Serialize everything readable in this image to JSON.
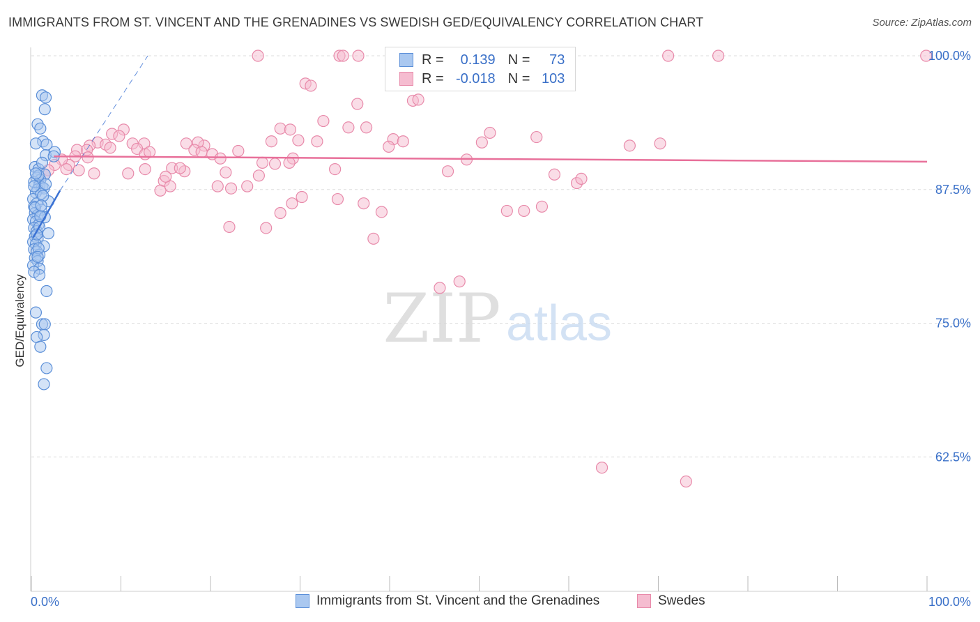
{
  "title": "IMMIGRANTS FROM ST. VINCENT AND THE GRENADINES VS SWEDISH GED/EQUIVALENCY CORRELATION CHART",
  "source": "Source: ZipAtlas.com",
  "watermark": {
    "zip": "ZIP",
    "atlas": "atlas"
  },
  "colors": {
    "blue_fill": "#aac8f0",
    "blue_stroke": "#5b8fd8",
    "blue_line": "#3b72d4",
    "pink_fill": "#f5bcd0",
    "pink_stroke": "#e88aaa",
    "pink_line": "#e8709a",
    "axis_text_blue": "#3a70c8",
    "grid": "#dddddd"
  },
  "legend": {
    "rows": [
      {
        "r_label": "R =",
        "r_value": "0.139",
        "n_label": "N =",
        "n_value": "73"
      },
      {
        "r_label": "R =",
        "r_value": "-0.018",
        "n_label": "N =",
        "n_value": "103"
      }
    ]
  },
  "bottom_legend": {
    "series1": "Immigrants from St. Vincent and the Grenadines",
    "series2": "Swedes"
  },
  "chart_data": {
    "type": "scatter",
    "title": "IMMIGRANTS FROM ST. VINCENT AND THE GRENADINES VS SWEDISH GED/EQUIVALENCY CORRELATION CHART",
    "xlabel": "",
    "ylabel": "GED/Equivalency",
    "xlim": [
      0,
      100
    ],
    "ylim": [
      50,
      100
    ],
    "x_tick_labels": [
      "0.0%",
      "100.0%"
    ],
    "y_ticks": [
      62.5,
      75.0,
      87.5,
      100.0
    ],
    "y_tick_labels": [
      "62.5%",
      "75.0%",
      "87.5%",
      "100.0%"
    ],
    "series": [
      {
        "name": "Immigrants from St. Vincent and the Grenadines",
        "color": "#aac8f0",
        "trend": {
          "x": [
            0.2,
            3.2
          ],
          "y": [
            83.0,
            87.4
          ]
        },
        "trend_extension": {
          "x": [
            3.2,
            13.0
          ],
          "y": [
            87.4,
            100.0
          ]
        },
        "points": [
          [
            1.2,
            96.3
          ],
          [
            1.6,
            96.1
          ],
          [
            1.5,
            95.0
          ],
          [
            0.7,
            93.6
          ],
          [
            1.0,
            93.2
          ],
          [
            1.3,
            92.0
          ],
          [
            0.5,
            91.8
          ],
          [
            1.7,
            91.7
          ],
          [
            1.6,
            90.7
          ],
          [
            2.6,
            91.0
          ],
          [
            2.5,
            90.6
          ],
          [
            0.4,
            89.6
          ],
          [
            0.8,
            89.4
          ],
          [
            1.5,
            88.9
          ],
          [
            0.6,
            88.6
          ],
          [
            1.0,
            88.4
          ],
          [
            0.3,
            88.2
          ],
          [
            0.9,
            87.9
          ],
          [
            1.2,
            87.7
          ],
          [
            0.7,
            87.5
          ],
          [
            1.4,
            87.6
          ],
          [
            0.5,
            87.2
          ],
          [
            0.2,
            86.6
          ],
          [
            1.9,
            86.4
          ],
          [
            0.6,
            86.2
          ],
          [
            0.3,
            85.9
          ],
          [
            1.1,
            85.6
          ],
          [
            0.4,
            85.3
          ],
          [
            0.7,
            85.1
          ],
          [
            1.5,
            84.9
          ],
          [
            0.2,
            84.7
          ],
          [
            0.5,
            84.5
          ],
          [
            0.8,
            84.2
          ],
          [
            0.3,
            83.9
          ],
          [
            0.6,
            83.6
          ],
          [
            1.9,
            83.4
          ],
          [
            0.4,
            83.1
          ],
          [
            0.7,
            82.9
          ],
          [
            0.2,
            82.6
          ],
          [
            0.5,
            82.4
          ],
          [
            1.4,
            82.2
          ],
          [
            0.3,
            81.9
          ],
          [
            0.6,
            81.7
          ],
          [
            0.9,
            81.4
          ],
          [
            0.4,
            81.1
          ],
          [
            0.7,
            80.8
          ],
          [
            0.2,
            80.4
          ],
          [
            0.9,
            80.1
          ],
          [
            0.3,
            79.8
          ],
          [
            1.7,
            78.0
          ],
          [
            0.5,
            76.0
          ],
          [
            1.2,
            74.9
          ],
          [
            1.5,
            74.9
          ],
          [
            1.4,
            73.9
          ],
          [
            0.6,
            73.7
          ],
          [
            1.0,
            72.8
          ],
          [
            1.7,
            70.8
          ],
          [
            1.4,
            69.3
          ],
          [
            0.8,
            88.8
          ],
          [
            1.1,
            87.1
          ],
          [
            0.4,
            85.8
          ],
          [
            0.9,
            84.0
          ],
          [
            1.3,
            86.9
          ],
          [
            0.6,
            83.3
          ],
          [
            0.8,
            82.0
          ],
          [
            1.0,
            85.0
          ],
          [
            0.3,
            87.8
          ],
          [
            0.5,
            89.0
          ],
          [
            1.2,
            90.0
          ],
          [
            0.7,
            81.2
          ],
          [
            1.6,
            88.0
          ],
          [
            0.9,
            79.5
          ],
          [
            1.1,
            86.0
          ]
        ]
      },
      {
        "name": "Swedes",
        "color": "#f5bcd0",
        "trend": {
          "x": [
            2.5,
            100
          ],
          "y": [
            90.6,
            90.1
          ]
        },
        "points": [
          [
            25.3,
            100
          ],
          [
            34.4,
            100
          ],
          [
            34.8,
            100
          ],
          [
            36.5,
            100
          ],
          [
            41.2,
            100
          ],
          [
            45.5,
            100
          ],
          [
            46.2,
            100
          ],
          [
            71.1,
            100
          ],
          [
            76.7,
            100
          ],
          [
            99.9,
            100
          ],
          [
            30.6,
            97.4
          ],
          [
            31.2,
            97.2
          ],
          [
            42.6,
            95.8
          ],
          [
            43.2,
            95.9
          ],
          [
            36.4,
            95.5
          ],
          [
            32.6,
            93.9
          ],
          [
            35.4,
            93.3
          ],
          [
            37.4,
            93.3
          ],
          [
            27.8,
            93.2
          ],
          [
            28.9,
            93.1
          ],
          [
            51.2,
            92.8
          ],
          [
            10.3,
            93.1
          ],
          [
            9.0,
            92.7
          ],
          [
            9.8,
            92.5
          ],
          [
            29.8,
            92.1
          ],
          [
            31.9,
            92.0
          ],
          [
            40.4,
            92.2
          ],
          [
            41.5,
            92.0
          ],
          [
            56.4,
            92.4
          ],
          [
            50.3,
            91.9
          ],
          [
            11.3,
            91.8
          ],
          [
            26.8,
            92.0
          ],
          [
            7.4,
            91.9
          ],
          [
            8.3,
            91.7
          ],
          [
            12.6,
            91.8
          ],
          [
            17.3,
            91.8
          ],
          [
            19.3,
            91.6
          ],
          [
            18.6,
            91.9
          ],
          [
            66.8,
            91.6
          ],
          [
            39.9,
            91.5
          ],
          [
            5.1,
            91.2
          ],
          [
            6.5,
            91.6
          ],
          [
            6.2,
            91.2
          ],
          [
            11.8,
            91.3
          ],
          [
            12.7,
            90.8
          ],
          [
            13.2,
            91.0
          ],
          [
            18.2,
            91.2
          ],
          [
            19.0,
            91.0
          ],
          [
            20.2,
            90.8
          ],
          [
            23.1,
            91.1
          ],
          [
            29.2,
            90.4
          ],
          [
            28.8,
            90.0
          ],
          [
            27.2,
            89.9
          ],
          [
            25.8,
            90.0
          ],
          [
            21.1,
            90.4
          ],
          [
            4.9,
            90.6
          ],
          [
            6.3,
            90.5
          ],
          [
            4.2,
            89.8
          ],
          [
            3.4,
            90.3
          ],
          [
            2.6,
            89.8
          ],
          [
            1.9,
            89.3
          ],
          [
            1.5,
            88.9
          ],
          [
            5.3,
            89.3
          ],
          [
            10.8,
            89.0
          ],
          [
            12.7,
            89.4
          ],
          [
            15.7,
            89.5
          ],
          [
            17.1,
            89.2
          ],
          [
            21.7,
            89.1
          ],
          [
            25.4,
            88.8
          ],
          [
            33.9,
            89.4
          ],
          [
            58.4,
            88.9
          ],
          [
            48.6,
            90.3
          ],
          [
            14.8,
            88.3
          ],
          [
            15.5,
            87.8
          ],
          [
            20.8,
            87.8
          ],
          [
            22.3,
            87.6
          ],
          [
            24.1,
            87.8
          ],
          [
            30.2,
            86.8
          ],
          [
            34.2,
            86.6
          ],
          [
            37.1,
            86.2
          ],
          [
            29.1,
            86.2
          ],
          [
            27.8,
            85.3
          ],
          [
            39.1,
            85.4
          ],
          [
            53.1,
            85.5
          ],
          [
            55.0,
            85.5
          ],
          [
            57.0,
            85.9
          ],
          [
            60.9,
            88.1
          ],
          [
            14.4,
            87.4
          ],
          [
            7.0,
            89.0
          ],
          [
            15.0,
            88.7
          ],
          [
            22.1,
            84.0
          ],
          [
            26.2,
            83.9
          ],
          [
            38.2,
            82.9
          ],
          [
            45.6,
            78.3
          ],
          [
            47.8,
            78.9
          ],
          [
            63.7,
            61.5
          ],
          [
            73.1,
            60.2
          ],
          [
            3.9,
            89.4
          ],
          [
            8.8,
            91.4
          ],
          [
            16.6,
            89.5
          ],
          [
            61.4,
            88.5
          ],
          [
            70.2,
            91.8
          ],
          [
            46.5,
            89.2
          ]
        ]
      }
    ]
  }
}
